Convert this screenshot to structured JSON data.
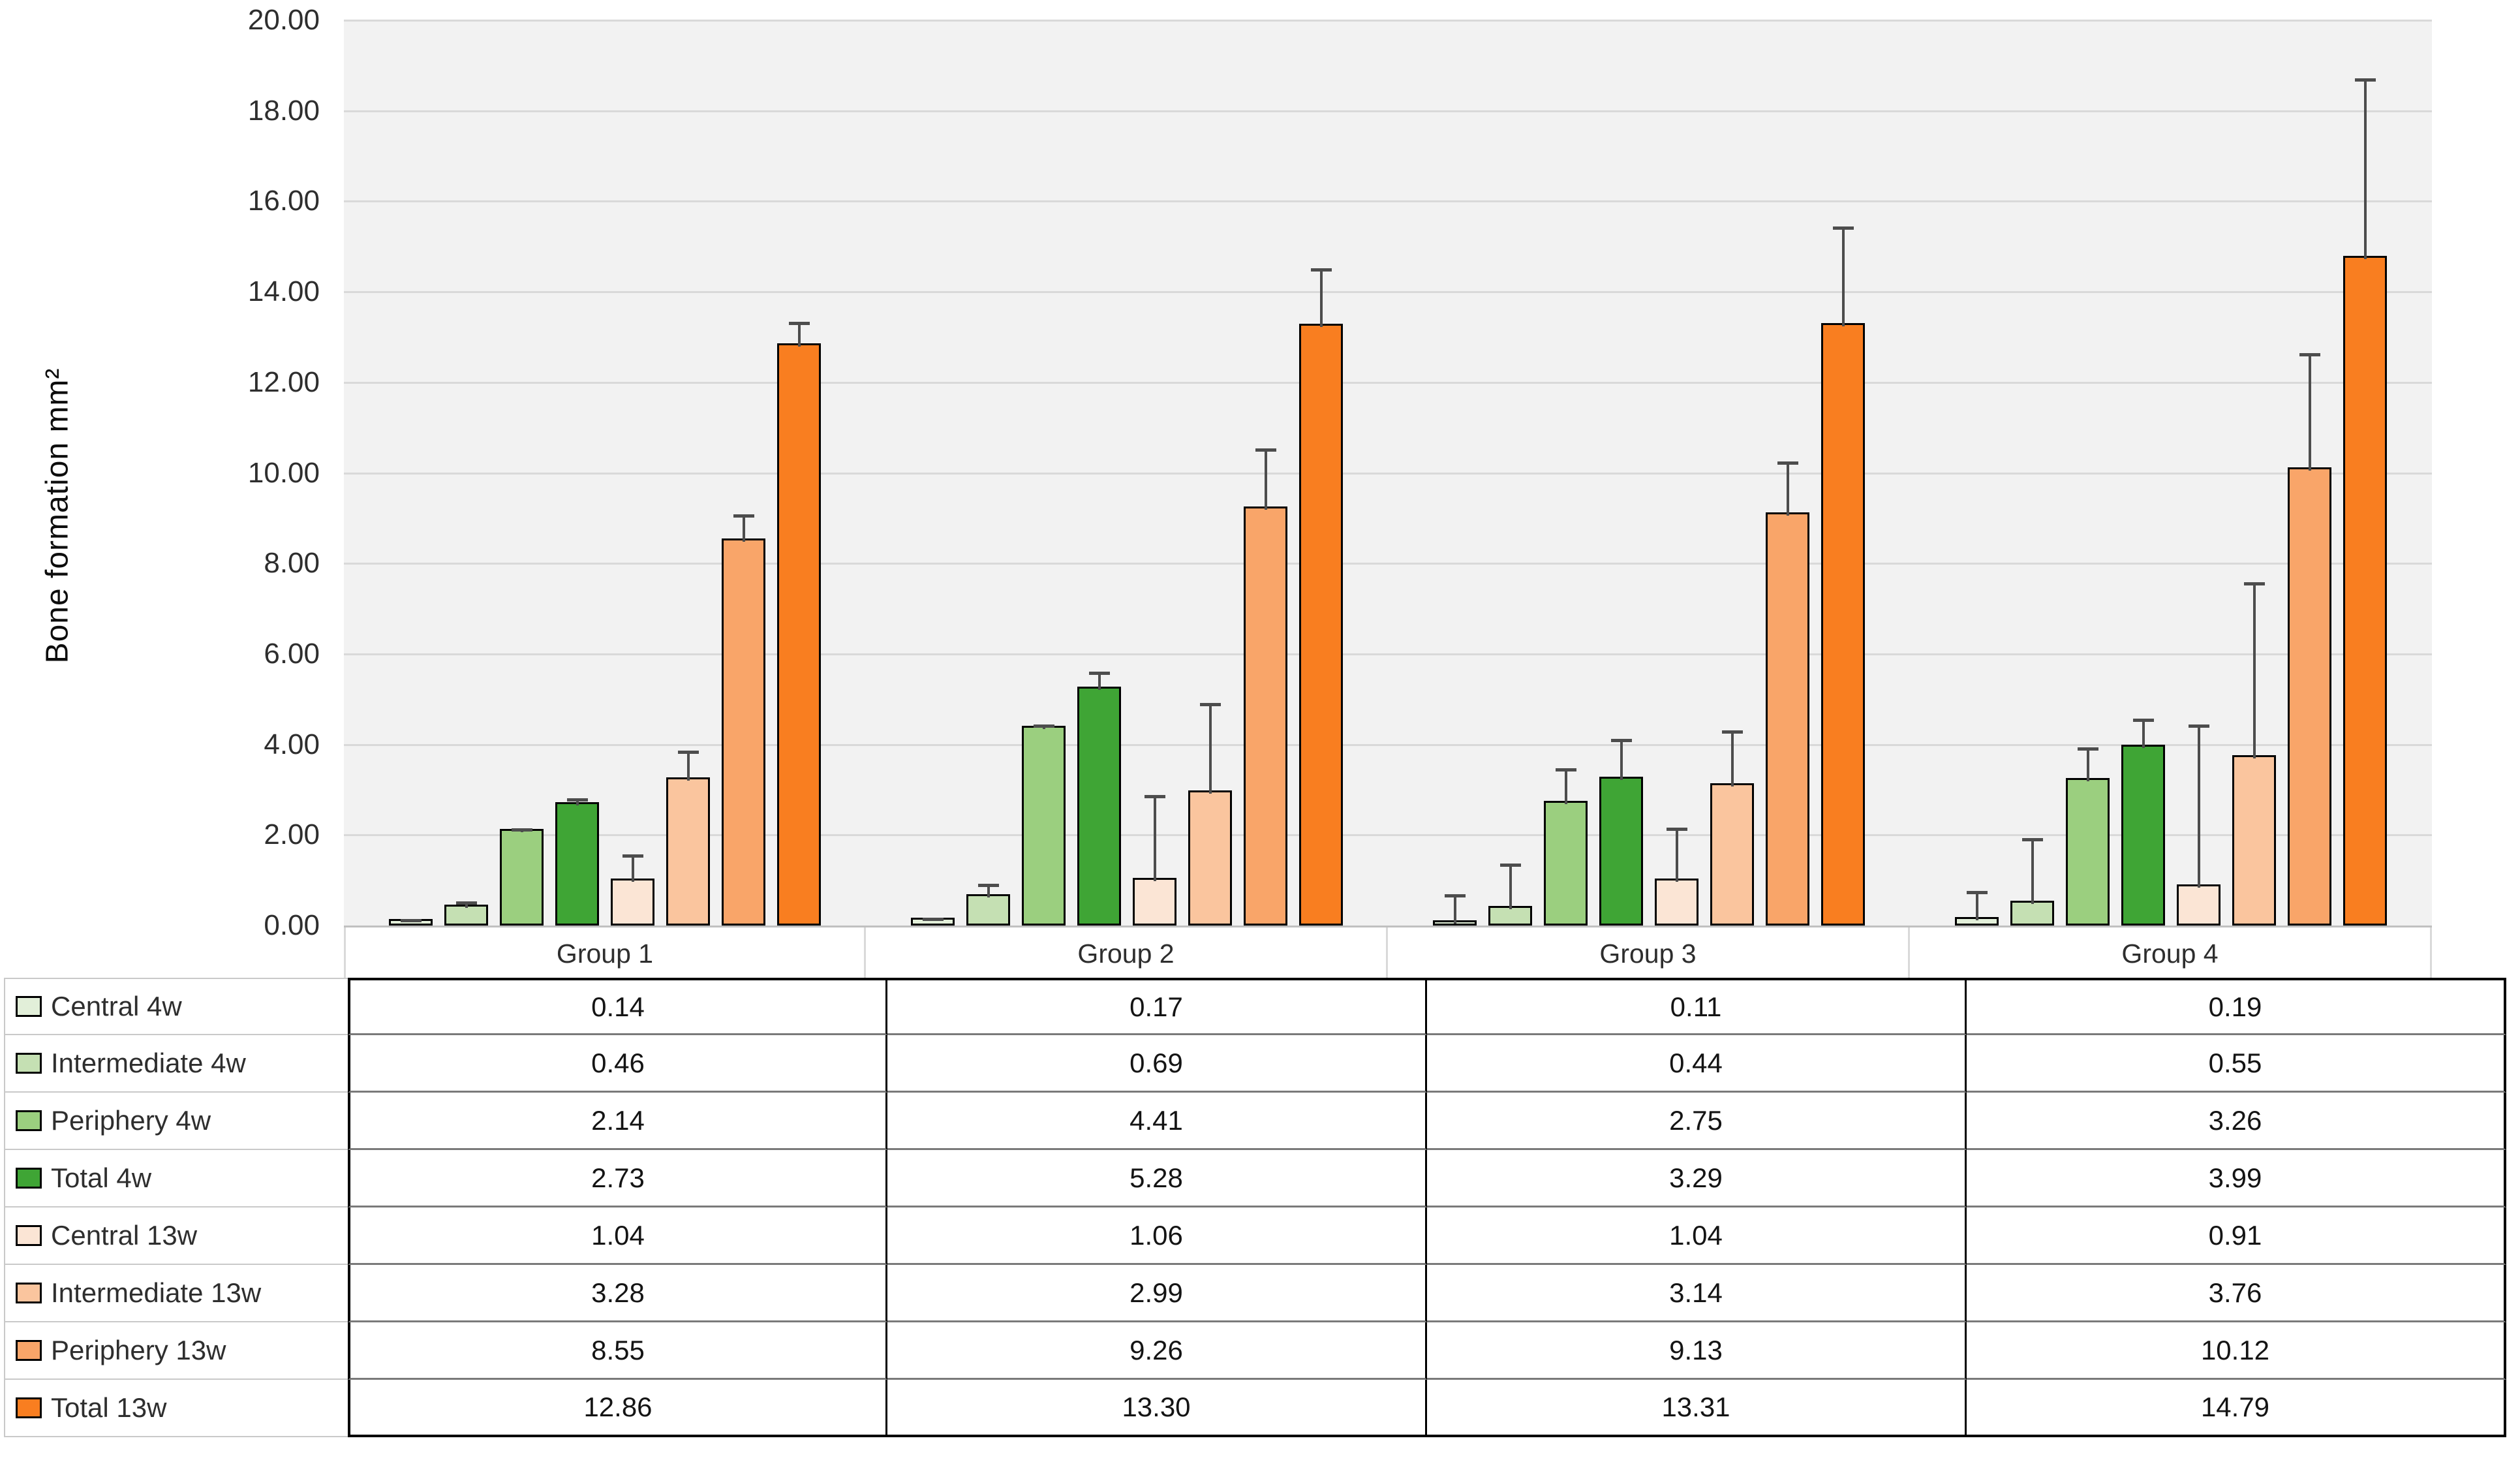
{
  "chart_data": {
    "type": "bar",
    "title": "",
    "ylabel": "Bone formation mm²",
    "xlabel": "",
    "ylim": [
      0,
      20
    ],
    "ytick_step": 2,
    "y_tick_labels": [
      "20.00",
      "18.00",
      "16.00",
      "14.00",
      "12.00",
      "10.00",
      "8.00",
      "6.00",
      "4.00",
      "2.00",
      "0.00"
    ],
    "grid": true,
    "legend_position": "table-left-column",
    "categories": [
      "Group 1",
      "Group 2",
      "Group 3",
      "Group 4"
    ],
    "series": [
      {
        "name": "Central 4w",
        "color": "#E2EFD9",
        "values": [
          0.14,
          0.17,
          0.11,
          0.19
        ],
        "errors_up": [
          0.05,
          0.05,
          0.65,
          0.65
        ]
      },
      {
        "name": "Intermediate 4w",
        "color": "#C5E0B3",
        "values": [
          0.46,
          0.69,
          0.44,
          0.55
        ],
        "errors_up": [
          0.15,
          0.3,
          1.0,
          1.45
        ]
      },
      {
        "name": "Periphery 4w",
        "color": "#9BCF7F",
        "values": [
          2.14,
          4.41,
          2.75,
          3.26
        ],
        "errors_up": [
          0.08,
          0.1,
          0.8,
          0.75
        ]
      },
      {
        "name": "Total 4w",
        "color": "#3FA535",
        "values": [
          2.73,
          5.28,
          3.29,
          3.99
        ],
        "errors_up": [
          0.15,
          0.4,
          0.9,
          0.65
        ]
      },
      {
        "name": "Central 13w",
        "color": "#FBE5D5",
        "values": [
          1.04,
          1.06,
          1.04,
          0.91
        ],
        "errors_up": [
          0.6,
          1.9,
          1.2,
          3.6
        ]
      },
      {
        "name": "Intermediate 13w",
        "color": "#FAC59E",
        "values": [
          3.28,
          2.99,
          3.14,
          3.76
        ],
        "errors_up": [
          0.65,
          2.0,
          1.25,
          3.9
        ]
      },
      {
        "name": "Periphery 13w",
        "color": "#F9A569",
        "values": [
          8.55,
          9.26,
          9.13,
          10.12
        ],
        "errors_up": [
          0.6,
          1.35,
          1.2,
          2.6
        ]
      },
      {
        "name": "Total 13w",
        "color": "#F97E20",
        "values": [
          12.86,
          13.3,
          13.31,
          14.79
        ],
        "errors_up": [
          0.55,
          1.3,
          2.2,
          4.0
        ]
      }
    ],
    "table_values": [
      [
        "0.14",
        "0.17",
        "0.11",
        "0.19"
      ],
      [
        "0.46",
        "0.69",
        "0.44",
        "0.55"
      ],
      [
        "2.14",
        "4.41",
        "2.75",
        "3.26"
      ],
      [
        "2.73",
        "5.28",
        "3.29",
        "3.99"
      ],
      [
        "1.04",
        "1.06",
        "1.04",
        "0.91"
      ],
      [
        "3.28",
        "2.99",
        "3.14",
        "3.76"
      ],
      [
        "8.55",
        "9.26",
        "9.13",
        "10.12"
      ],
      [
        "12.86",
        "13.30",
        "13.31",
        "14.79"
      ]
    ]
  },
  "colors": {
    "plot_background": "#F2F2F2",
    "gridline": "#D9D9D9",
    "axis_line": "#C0C0C0",
    "axis_band_divider": "#D9D9D9",
    "bar_border": "#000000",
    "error_bar": "#4D4D4D",
    "table_outer_border": "#000000",
    "table_row_border": "#7A7A7A",
    "label_column_border": "#C9C9C9"
  }
}
